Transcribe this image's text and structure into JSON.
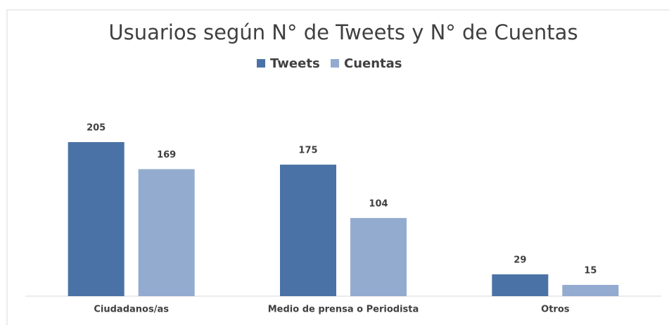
{
  "chart_data": {
    "type": "bar",
    "title": "Usuarios según N° de Tweets y N° de Cuentas",
    "categories": [
      "Ciudadanos/as",
      "Medio de prensa o Periodista",
      "Otros"
    ],
    "series": [
      {
        "name": "Tweets",
        "color": "#4a72a6",
        "values": [
          205,
          175,
          29
        ]
      },
      {
        "name": "Cuentas",
        "color": "#94abd0",
        "values": [
          169,
          104,
          15
        ]
      }
    ],
    "legend": "top"
  }
}
